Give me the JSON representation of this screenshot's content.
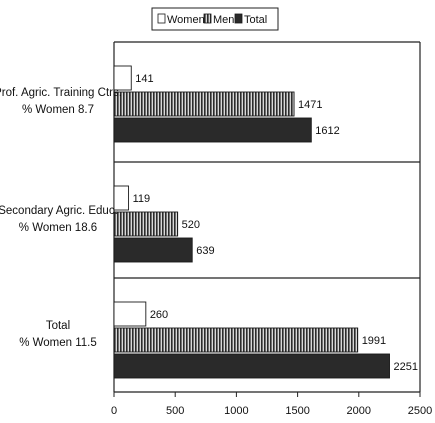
{
  "chart_data": {
    "type": "bar",
    "orientation": "horizontal",
    "title": "",
    "xlabel": "",
    "ylabel": "",
    "categories": [
      [
        "Prof. Agric. Training Ctrs.",
        "% Women 8.7"
      ],
      [
        "Secondary Agric. Educ.",
        "% Women 18.6"
      ],
      [
        "Total",
        "% Women 11.5"
      ]
    ],
    "series": [
      {
        "name": "Women",
        "values": [
          141,
          119,
          260
        ],
        "color": "#ffffff",
        "pattern": "none"
      },
      {
        "name": "Men",
        "values": [
          1471,
          520,
          1991
        ],
        "color": "#9a9a9a",
        "pattern": "vertical-stripes"
      },
      {
        "name": "Total",
        "values": [
          1612,
          639,
          2251
        ],
        "color": "#2a2a2a",
        "pattern": "solid"
      }
    ],
    "value_labels": [
      [
        "141",
        "1471",
        "1612"
      ],
      [
        "119",
        "520",
        "639"
      ],
      [
        "260",
        "1991",
        "2251"
      ]
    ],
    "xlim": [
      0,
      2500
    ],
    "xticks": [
      0,
      500,
      1000,
      1500,
      2000,
      2500
    ],
    "xtick_labels": [
      "0",
      "500",
      "1000",
      "1500",
      "2000",
      "2500"
    ],
    "legend_position": "top-center",
    "grid": false,
    "group_separators": true
  }
}
